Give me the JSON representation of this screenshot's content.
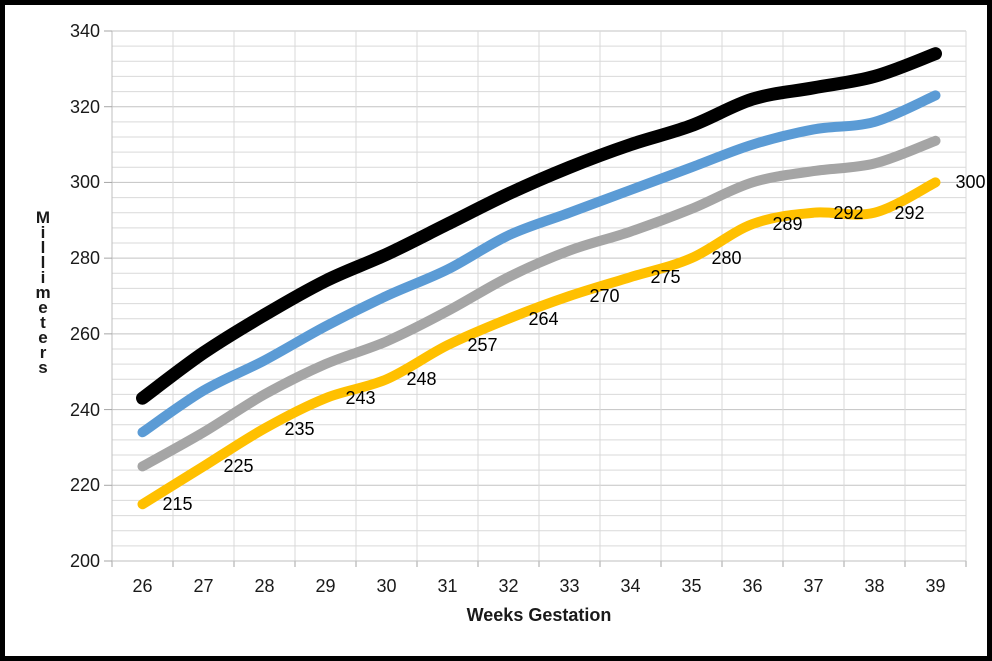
{
  "chart_data": {
    "type": "line",
    "title": "",
    "xlabel": "Weeks Gestation",
    "ylabel": "Millimeters",
    "x": [
      26,
      27,
      28,
      29,
      30,
      31,
      32,
      33,
      34,
      35,
      36,
      37,
      38,
      39
    ],
    "x_tick_labels": [
      "26",
      "27",
      "28",
      "29",
      "30",
      "31",
      "32",
      "33",
      "34",
      "35",
      "36",
      "37",
      "38",
      "39"
    ],
    "ylim": [
      200,
      340
    ],
    "y_major_tick": 20,
    "y_minor_tick": 4,
    "y_tick_labels": [
      "340",
      "320",
      "300",
      "280",
      "260",
      "240",
      "220",
      "200"
    ],
    "grid": true,
    "legend_position": "none",
    "series": [
      {
        "name": "black-upper-curve",
        "color": "#000000",
        "stroke_width": 13,
        "values": [
          243,
          255,
          265,
          274,
          281,
          289,
          297,
          304,
          310,
          315,
          322,
          325,
          328,
          334
        ],
        "data_labels": []
      },
      {
        "name": "blue-curve",
        "color": "#5B9BD5",
        "stroke_width": 10,
        "values": [
          234,
          245,
          253,
          262,
          270,
          277,
          286,
          292,
          298,
          304,
          310,
          314,
          316,
          323
        ],
        "data_labels": []
      },
      {
        "name": "gray-curve",
        "color": "#A5A5A5",
        "stroke_width": 10,
        "values": [
          225,
          234,
          244,
          252,
          258,
          266,
          275,
          282,
          287,
          293,
          300,
          303,
          305,
          311
        ],
        "data_labels": []
      },
      {
        "name": "yellow-labeled-curve",
        "color": "#FFC000",
        "stroke_width": 10,
        "values": [
          215,
          225,
          235,
          243,
          248,
          257,
          264,
          270,
          275,
          280,
          289,
          292,
          292,
          300
        ],
        "data_labels": [
          "215",
          "225",
          "235",
          "243",
          "248",
          "257",
          "264",
          "270",
          "275",
          "280",
          "289",
          "292",
          "292",
          "300"
        ]
      }
    ],
    "colors": {
      "grid_minor": "#D9D9D9",
      "grid_major": "#C3C3C3",
      "axis_line": "#BFBFBF",
      "tick_mark": "#A6A6A6",
      "text": "#1a1a1a",
      "frame_border": "#000000"
    }
  }
}
